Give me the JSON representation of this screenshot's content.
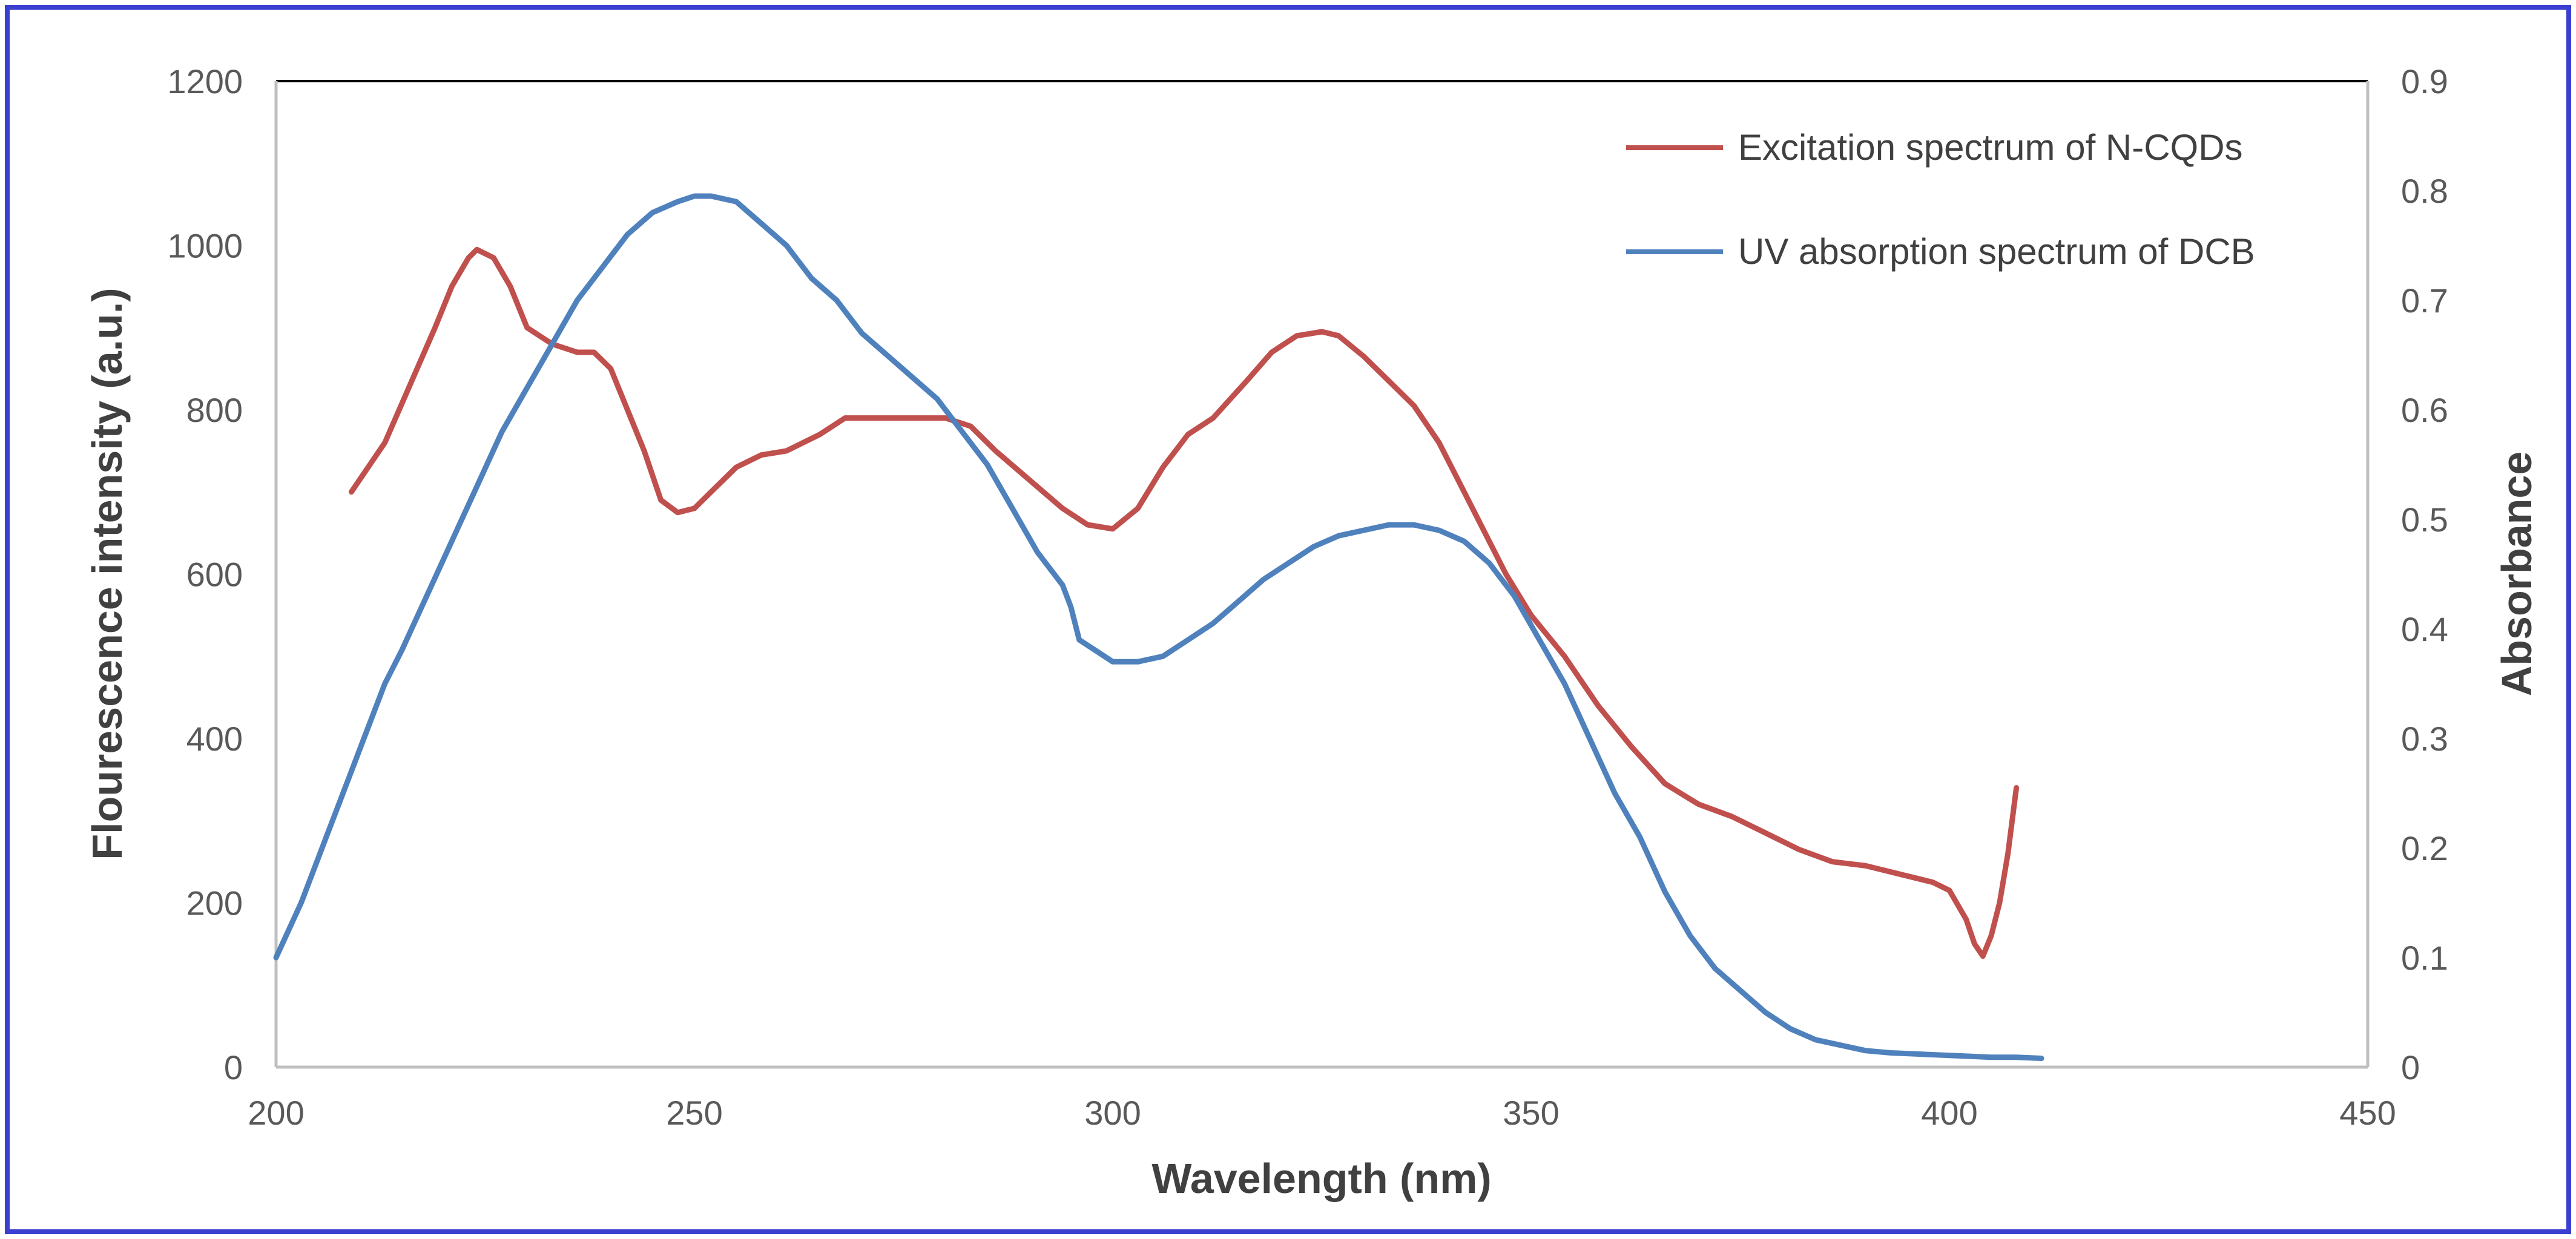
{
  "chart_data": {
    "type": "line",
    "title": "",
    "xlabel": "Wavelength (nm)",
    "ylabel": "Flourescence intensity (a.u.)",
    "y2label": "Absorbance",
    "xlim": [
      200,
      450
    ],
    "ylim": [
      0,
      1200
    ],
    "y2lim": [
      0,
      0.9
    ],
    "x_ticks": [
      "200",
      "250",
      "300",
      "350",
      "400",
      "450"
    ],
    "y_ticks": [
      "0",
      "200",
      "400",
      "600",
      "800",
      "1000",
      "1200"
    ],
    "y2_ticks": [
      "0",
      "0.1",
      "0.2",
      "0.3",
      "0.4",
      "0.5",
      "0.6",
      "0.7",
      "0.8",
      "0.9"
    ],
    "legend_position": "top-right",
    "series": [
      {
        "name": "Excitation spectrum of N-CQDs",
        "axis": "left",
        "color": "#c0504d",
        "x": [
          209,
          213,
          216,
          219,
          221,
          223,
          224,
          226,
          228,
          230,
          233,
          236,
          238,
          240,
          242,
          244,
          246,
          248,
          250,
          252,
          255,
          258,
          261,
          265,
          268,
          271,
          274,
          277,
          280,
          283,
          286,
          290,
          294,
          297,
          300,
          303,
          306,
          309,
          312,
          316,
          319,
          322,
          325,
          327,
          330,
          333,
          336,
          339,
          343,
          347,
          350,
          354,
          358,
          362,
          366,
          370,
          374,
          378,
          382,
          386,
          390,
          394,
          398,
          400,
          402,
          403,
          404,
          405,
          406,
          407,
          408
        ],
        "values": [
          700,
          760,
          830,
          900,
          950,
          985,
          995,
          985,
          950,
          900,
          880,
          870,
          870,
          850,
          800,
          750,
          690,
          675,
          680,
          700,
          730,
          745,
          750,
          770,
          790,
          790,
          790,
          790,
          790,
          780,
          750,
          715,
          680,
          660,
          655,
          680,
          730,
          770,
          790,
          835,
          870,
          890,
          895,
          890,
          865,
          835,
          805,
          760,
          680,
          600,
          550,
          500,
          440,
          390,
          345,
          320,
          305,
          285,
          265,
          250,
          245,
          235,
          225,
          215,
          180,
          150,
          135,
          160,
          200,
          260,
          340
        ]
      },
      {
        "name": "UV absorption spectrum of DCB",
        "axis": "right",
        "color": "#4f81bd",
        "x": [
          200,
          203,
          206,
          209,
          211,
          213,
          215,
          218,
          221,
          224,
          227,
          230,
          233,
          236,
          239,
          242,
          245,
          248,
          250,
          252,
          255,
          258,
          261,
          264,
          267,
          270,
          273,
          276,
          279,
          282,
          285,
          288,
          291,
          294,
          295,
          296,
          298,
          300,
          303,
          306,
          309,
          312,
          315,
          318,
          321,
          324,
          327,
          330,
          333,
          336,
          339,
          342,
          345,
          348,
          351,
          354,
          357,
          360,
          363,
          366,
          369,
          372,
          375,
          378,
          381,
          384,
          387,
          390,
          393,
          396,
          399,
          402,
          405,
          408,
          411
        ],
        "values": [
          0.1,
          0.15,
          0.21,
          0.27,
          0.31,
          0.35,
          0.38,
          0.43,
          0.48,
          0.53,
          0.58,
          0.62,
          0.66,
          0.7,
          0.73,
          0.76,
          0.78,
          0.79,
          0.795,
          0.795,
          0.79,
          0.77,
          0.75,
          0.72,
          0.7,
          0.67,
          0.65,
          0.63,
          0.61,
          0.58,
          0.55,
          0.51,
          0.47,
          0.44,
          0.42,
          0.39,
          0.38,
          0.37,
          0.37,
          0.375,
          0.39,
          0.405,
          0.425,
          0.445,
          0.46,
          0.475,
          0.485,
          0.49,
          0.495,
          0.495,
          0.49,
          0.48,
          0.46,
          0.43,
          0.39,
          0.35,
          0.3,
          0.25,
          0.21,
          0.16,
          0.12,
          0.09,
          0.07,
          0.05,
          0.035,
          0.025,
          0.02,
          0.015,
          0.013,
          0.012,
          0.011,
          0.01,
          0.009,
          0.009,
          0.008
        ]
      }
    ]
  }
}
